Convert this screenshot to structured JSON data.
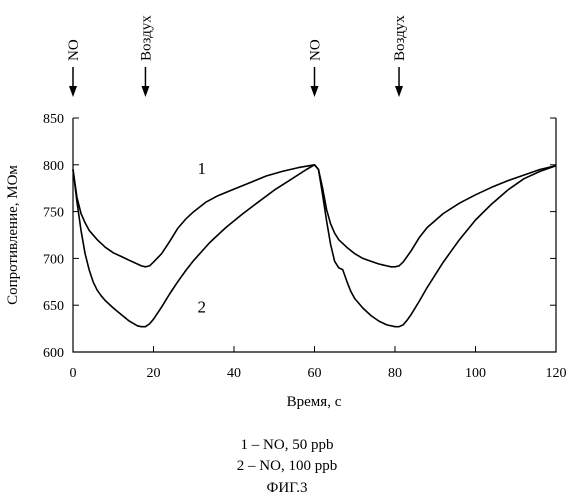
{
  "chart_data": {
    "type": "line",
    "xlabel": "Время, с",
    "ylabel": "Сопротивление, МОм",
    "xlim": [
      0,
      120
    ],
    "ylim": [
      600,
      850
    ],
    "xticks": [
      0,
      20,
      40,
      60,
      80,
      100,
      120
    ],
    "yticks": [
      600,
      650,
      700,
      750,
      800,
      850
    ],
    "grid": false,
    "events": [
      {
        "x": 0,
        "label": "NO"
      },
      {
        "x": 18,
        "label": "Воздух"
      },
      {
        "x": 60,
        "label": "NO"
      },
      {
        "x": 81,
        "label": "Воздух"
      }
    ],
    "series": [
      {
        "name": "1",
        "x": [
          0,
          1,
          2,
          3,
          4,
          6,
          8,
          10,
          12,
          14,
          16,
          17,
          18,
          19,
          20,
          22,
          24,
          26,
          28,
          30,
          33,
          36,
          40,
          44,
          48,
          52,
          56,
          60,
          61,
          62,
          63,
          64,
          65,
          66,
          68,
          70,
          72,
          74,
          76,
          78,
          79,
          80,
          81,
          82,
          84,
          86,
          88,
          92,
          96,
          100,
          104,
          108,
          112,
          116,
          120
        ],
        "values": [
          795,
          765,
          748,
          738,
          730,
          720,
          712,
          706,
          702,
          698,
          694,
          692,
          691,
          692,
          696,
          705,
          718,
          732,
          742,
          750,
          760,
          767,
          774,
          781,
          788,
          793,
          797,
          800,
          795,
          775,
          752,
          737,
          727,
          720,
          712,
          705,
          700,
          697,
          694,
          692,
          691,
          691,
          692,
          696,
          708,
          722,
          733,
          748,
          759,
          768,
          776,
          783,
          789,
          795,
          799
        ]
      },
      {
        "name": "2",
        "x": [
          0,
          1,
          2,
          3,
          4,
          5,
          6,
          7,
          8,
          10,
          12,
          14,
          16,
          17,
          18,
          19,
          20,
          22,
          24,
          26,
          28,
          30,
          34,
          38,
          42,
          46,
          50,
          54,
          58,
          60,
          61,
          62,
          63,
          64,
          65,
          66,
          67,
          68,
          69,
          70,
          72,
          74,
          76,
          78,
          80,
          81,
          82,
          83,
          84,
          86,
          88,
          92,
          96,
          100,
          104,
          108,
          112,
          116,
          120
        ],
        "values": [
          795,
          760,
          730,
          705,
          688,
          675,
          666,
          660,
          655,
          647,
          640,
          633,
          628,
          627,
          627,
          630,
          635,
          648,
          662,
          675,
          687,
          698,
          717,
          733,
          747,
          760,
          773,
          784,
          795,
          800,
          795,
          768,
          740,
          715,
          697,
          690,
          688,
          676,
          665,
          657,
          647,
          639,
          633,
          629,
          627,
          627,
          629,
          634,
          640,
          654,
          669,
          696,
          720,
          741,
          758,
          773,
          785,
          793,
          799
        ]
      }
    ],
    "curve_labels": [
      {
        "text": "1",
        "x": 32,
        "y": 790
      },
      {
        "text": "2",
        "x": 32,
        "y": 642
      }
    ]
  },
  "caption": {
    "line1": "1 – NO, 50 ppb",
    "line2": "2 – NO, 100 ppb",
    "line3": "ФИГ.3"
  }
}
